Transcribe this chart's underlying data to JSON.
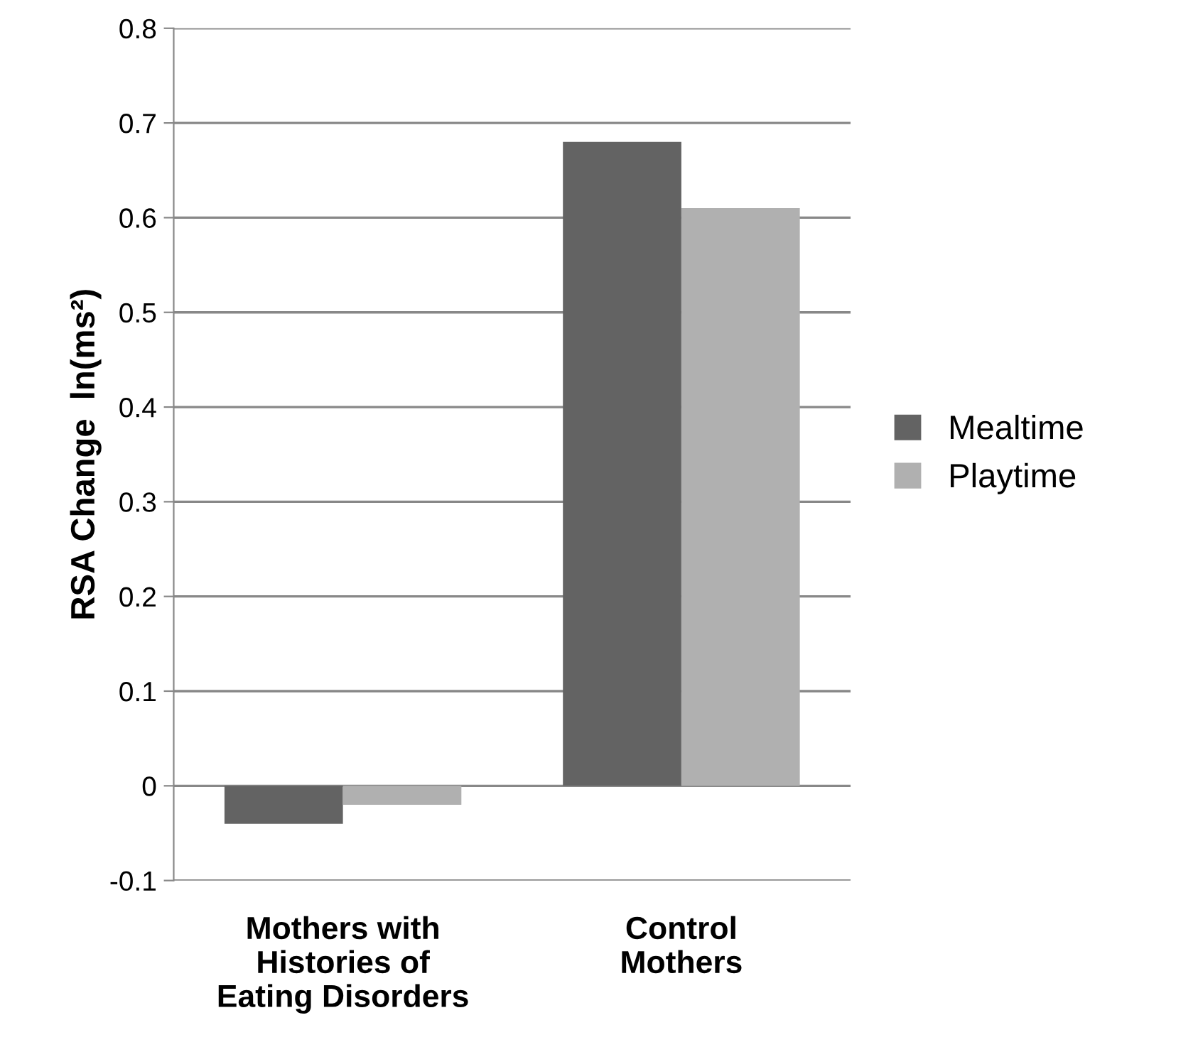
{
  "chart_data": {
    "type": "bar",
    "ylabel": "RSA Change  ln(ms²)",
    "categories": [
      "Mothers with\nHistories of\nEating Disorders",
      "Control\nMothers"
    ],
    "series": [
      {
        "name": "Mealtime",
        "color": "#636363",
        "values": [
          -0.04,
          0.68
        ]
      },
      {
        "name": "Playtime",
        "color": "#b0b0b0",
        "values": [
          -0.02,
          0.61
        ]
      }
    ],
    "ylim": [
      -0.1,
      0.8
    ],
    "yticks": [
      {
        "value": -0.1,
        "label": "-0.1"
      },
      0,
      0.1,
      0.2,
      0.3,
      0.4,
      0.5,
      0.6,
      0.7,
      0.8
    ],
    "grid": "y",
    "legend": "right"
  }
}
